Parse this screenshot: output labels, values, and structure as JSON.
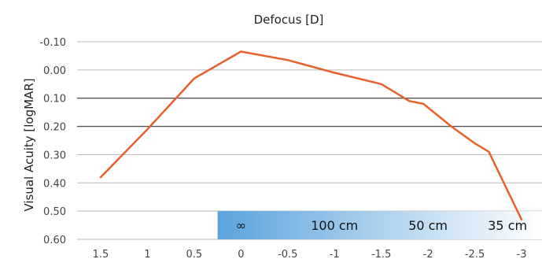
{
  "chart_data": {
    "type": "line",
    "title": "Defocus [D]",
    "xlabel": "",
    "ylabel": "Visual Acuity [logMAR]",
    "x_ticks": [
      "1.5",
      "1",
      "0.5",
      "0",
      "-0.5",
      "-1",
      "-1.5",
      "-2",
      "-2.5",
      "-3"
    ],
    "y_ticks": [
      "-0.10",
      "0.00",
      "0.10",
      "0.20",
      "0.30",
      "0.40",
      "0.50",
      "0.60"
    ],
    "xlim": [
      1.5,
      -3
    ],
    "ylim": [
      -0.1,
      0.6
    ],
    "y_axis_inverted": true,
    "grid": "horizontal",
    "series": [
      {
        "color": "#e8602c",
        "x": [
          1.5,
          1.0,
          0.75,
          0.5,
          0.0,
          -0.5,
          -1.0,
          -1.5,
          -1.8,
          -1.95,
          -2.25,
          -2.5,
          -2.65,
          -3.0
        ],
        "y": [
          0.38,
          0.21,
          0.12,
          0.03,
          -0.065,
          -0.035,
          0.01,
          0.05,
          0.11,
          0.12,
          0.2,
          0.26,
          0.29,
          0.53
        ]
      }
    ],
    "distance_band": {
      "labels": [
        "∞",
        "100 cm",
        "50 cm",
        "35 cm"
      ],
      "colors": [
        "#5aa3dc",
        "#ffffff"
      ]
    }
  }
}
